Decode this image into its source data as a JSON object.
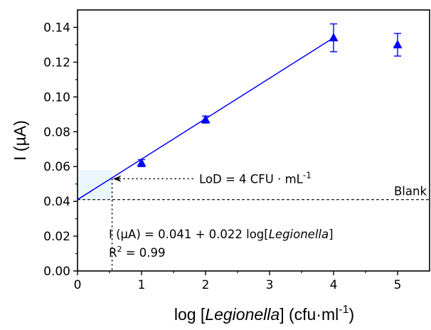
{
  "chart_data": {
    "type": "scatter",
    "xlabel": {
      "prefix": "log [",
      "italic": "Legionella",
      "suffix": "] (cfu·ml",
      "sup": "-1",
      "close": ")"
    },
    "ylabel": "I (µA)",
    "xlim": [
      0,
      5.5
    ],
    "ylim": [
      0,
      0.15
    ],
    "xticks": [
      0,
      1,
      2,
      3,
      4,
      5
    ],
    "yticks": [
      0.0,
      0.02,
      0.04,
      0.06,
      0.08,
      0.1,
      0.12,
      0.14
    ],
    "ytick_labels": [
      "0.00",
      "0.02",
      "0.04",
      "0.06",
      "0.08",
      "0.10",
      "0.12",
      "0.14"
    ],
    "series": [
      {
        "marker": "triangle",
        "color": "#0000ff",
        "points": [
          {
            "x": 1,
            "y": 0.062,
            "err": 0.002
          },
          {
            "x": 2,
            "y": 0.087,
            "err": 0.002
          },
          {
            "x": 4,
            "y": 0.134,
            "err": 0.008
          },
          {
            "x": 5,
            "y": 0.13,
            "err": 0.0065
          }
        ]
      }
    ],
    "fit": {
      "intercept": 0.041,
      "slope": 0.022,
      "x_range": [
        0,
        4
      ],
      "color": "#0000ff"
    },
    "blank": {
      "y": 0.041,
      "label": "Blank"
    },
    "lod": {
      "x": 0.54,
      "y": 0.053,
      "label": "LoD = 4 CFU · mL",
      "label_sup": "-1"
    },
    "equation": {
      "prefix": "I (µA) = 0.041 + 0.022 log[",
      "italic": "Legionella",
      "suffix": "]"
    },
    "r2": {
      "prefix": "R",
      "sup": "2",
      "suffix": " = 0.99"
    },
    "grid": false
  }
}
